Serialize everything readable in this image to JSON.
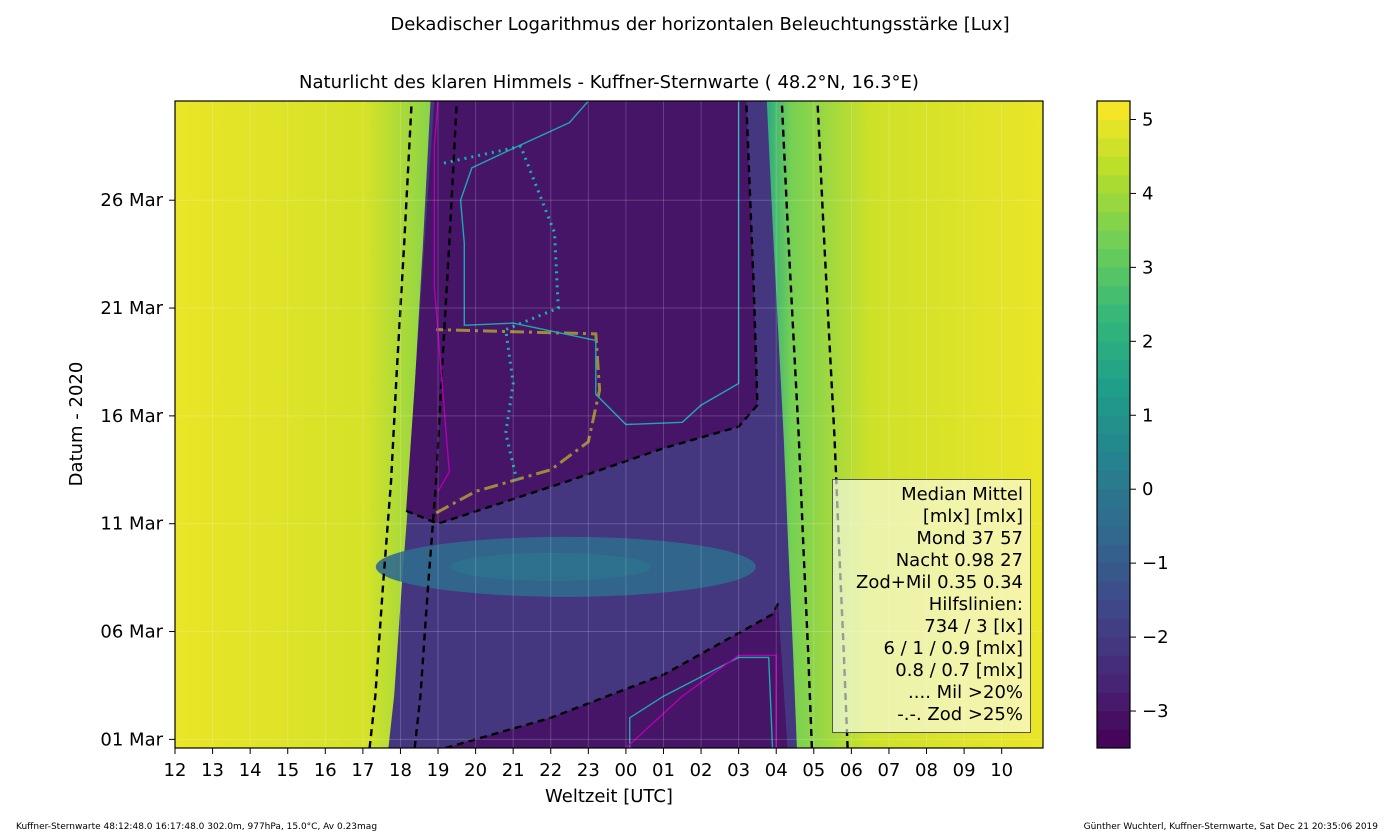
{
  "header": {
    "suptitle": "Dekadischer Logarithmus der horizontalen Beleuchtungsstärke [Lux]",
    "title": "Naturlicht des klaren Himmels - Kuffner-Sternwarte ( 48.2°N, 16.3°E)"
  },
  "footer": {
    "left": "Kuffner-Sternwarte 48:12:48.0 16:17:48.0 302.0m,  977hPa, 15.0°C, Av 0.23mag",
    "right": "Günther Wuchterl, Kuffner-Sternwarte, Sat Dec 21 20:35:06 2019"
  },
  "legend_lines": [
    "Median Mittel",
    "[mlx]  [mlx]",
    "Mond   37  57",
    "Nacht 0.98  27",
    "Zod+Mil 0.35  0.34",
    "Hilfslinien:",
    "734 / 3  [lx]",
    "6 /  1 / 0.9 [mlx]",
    "0.8 / 0.7 [mlx]",
    ".... Mil >20%",
    "-.-. Zod >25%"
  ],
  "chart_data": {
    "type": "heatmap",
    "title": "Naturlicht des klaren Himmels - Kuffner-Sternwarte ( 48.2°N, 16.3°E)",
    "suptitle": "Dekadischer Logarithmus der horizontalen Beleuchtungsstärke [Lux]",
    "xlabel": "Weltzeit [UTC]",
    "ylabel": "Datum - 2020",
    "x_ticks": [
      "12",
      "13",
      "14",
      "15",
      "16",
      "17",
      "18",
      "19",
      "20",
      "21",
      "22",
      "23",
      "00",
      "01",
      "02",
      "03",
      "04",
      "05",
      "06",
      "07",
      "08",
      "09",
      "10"
    ],
    "x_range_hours": [
      12,
      35.1
    ],
    "y_ticks": [
      "01 Mar",
      "06 Mar",
      "11 Mar",
      "16 Mar",
      "21 Mar",
      "26 Mar"
    ],
    "y_range_days": [
      0.6,
      30.6
    ],
    "colorbar": {
      "range": [
        -3.5,
        5.25
      ],
      "ticks": [
        "5",
        "4",
        "3",
        "2",
        "1",
        "0",
        "−1",
        "−2",
        "−3"
      ],
      "tick_values": [
        5,
        4,
        3,
        2,
        1,
        0,
        -1,
        -2,
        -3
      ],
      "colormap": [
        "#440154",
        "#482878",
        "#3e4989",
        "#31688e",
        "#26828e",
        "#1f9e89",
        "#35b779",
        "#6ece58",
        "#b5de2b",
        "#fde725"
      ]
    },
    "grid": true,
    "legend_position": "lower right",
    "day_level": 5,
    "night_level": -3,
    "moon_window_level": -0.4,
    "sunset_lines": [
      [
        17.18,
        0.6
      ],
      [
        17.33,
        3
      ],
      [
        17.53,
        8
      ],
      [
        17.75,
        13
      ],
      [
        17.9,
        18
      ],
      [
        18.1,
        24
      ],
      [
        18.3,
        30.6
      ]
    ],
    "sunrise_lines": [
      [
        4.95,
        0.6
      ],
      [
        4.85,
        5
      ],
      [
        4.72,
        10
      ],
      [
        4.6,
        15
      ],
      [
        4.45,
        20
      ],
      [
        4.3,
        25
      ],
      [
        4.15,
        30.6
      ]
    ],
    "moon_boundary_lower": [
      [
        19.2,
        0.6
      ],
      [
        22.0,
        2
      ],
      [
        1.0,
        4
      ],
      [
        3.9,
        6.8
      ],
      [
        4.05,
        7.3
      ]
    ],
    "moon_boundary_upper": [
      [
        18.15,
        11.6
      ],
      [
        19.0,
        11.0
      ],
      [
        22.5,
        13.0
      ],
      [
        1.0,
        14.5
      ],
      [
        3.0,
        15.5
      ],
      [
        3.5,
        16.5
      ],
      [
        3.4,
        22
      ],
      [
        3.2,
        30.6
      ]
    ]
  }
}
